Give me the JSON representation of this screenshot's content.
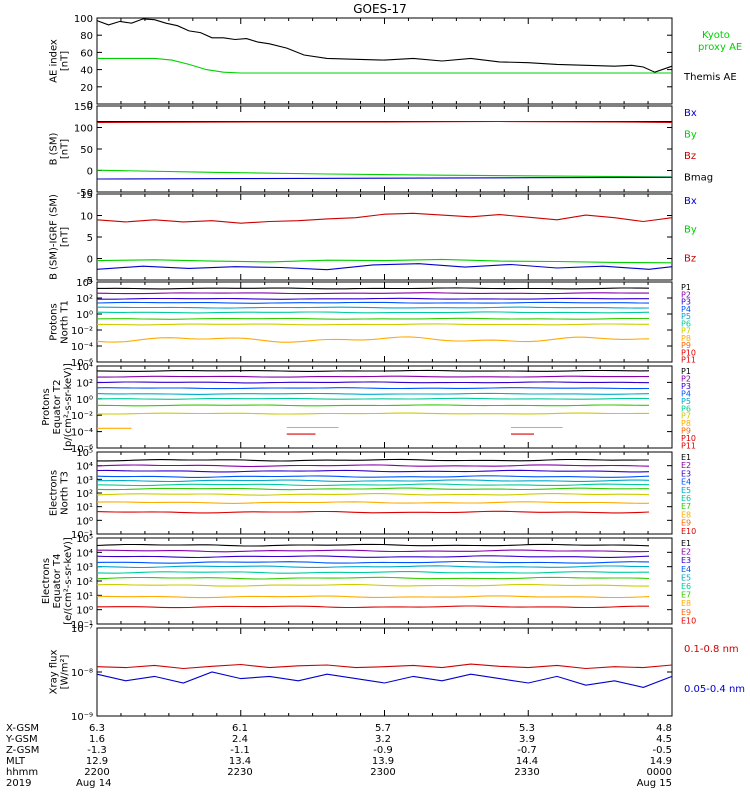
{
  "title": "GOES-17",
  "colors": {
    "black": "#000000",
    "green": "#00d000",
    "red": "#cc0000",
    "blue": "#0000cc",
    "p": [
      "#000000",
      "#8800aa",
      "#3300cc",
      "#0055ff",
      "#00aacc",
      "#00cc99",
      "#33cc00",
      "#cccc00",
      "#ffaa00",
      "#ff6600",
      "#dd0000"
    ],
    "e": [
      "#000000",
      "#8800aa",
      "#3300cc",
      "#0055ff",
      "#00aacc",
      "#00cc99",
      "#33cc00",
      "#cccc00",
      "#ffaa00",
      "#ff6600",
      "#dd0000"
    ]
  },
  "chart_data": [
    {
      "type": "line",
      "id": "ae",
      "ylabel": [
        "AE index",
        "[nT]"
      ],
      "ylim": [
        0,
        100
      ],
      "yticks": [
        "0",
        "20",
        "40",
        "60",
        "80",
        "100"
      ],
      "legend": [
        {
          "text": "Kyoto",
          "color": "#00d000"
        },
        {
          "text": "proxy AE",
          "color": "#00d000"
        },
        {
          "text": "Themis AE",
          "color": "#000000"
        }
      ],
      "series": [
        {
          "color": "#000000",
          "x": [
            0,
            0.02,
            0.04,
            0.06,
            0.08,
            0.1,
            0.12,
            0.14,
            0.16,
            0.18,
            0.2,
            0.22,
            0.24,
            0.26,
            0.28,
            0.3,
            0.33,
            0.36,
            0.4,
            0.45,
            0.5,
            0.55,
            0.6,
            0.65,
            0.7,
            0.75,
            0.8,
            0.85,
            0.9,
            0.93,
            0.95,
            0.97,
            1.0
          ],
          "y": [
            97,
            92,
            96,
            94,
            99,
            98,
            94,
            91,
            85,
            83,
            77,
            77,
            75,
            76,
            72,
            70,
            65,
            57,
            53,
            52,
            51,
            53,
            50,
            53,
            49,
            48,
            46,
            45,
            44,
            45,
            43,
            37,
            44
          ]
        },
        {
          "color": "#00d000",
          "x": [
            0,
            0.07,
            0.1,
            0.13,
            0.16,
            0.19,
            0.22,
            0.25,
            0.3,
            1.0
          ],
          "y": [
            53,
            53,
            53,
            51,
            46,
            40,
            37,
            36,
            36,
            36
          ]
        }
      ]
    },
    {
      "type": "line",
      "id": "bsm",
      "ylabel": [
        "B (SM)",
        "[nT]"
      ],
      "ylim": [
        -55,
        150
      ],
      "yticks": [
        "-50",
        "0",
        "50",
        "100",
        "150"
      ],
      "legend": [
        {
          "text": "Bx",
          "color": "#0000cc"
        },
        {
          "text": "By",
          "color": "#00d000"
        },
        {
          "text": "Bz",
          "color": "#cc0000"
        },
        {
          "text": "Bmag",
          "color": "#000000"
        }
      ],
      "series": [
        {
          "color": "#000000",
          "x": [
            0,
            1
          ],
          "y": [
            113,
            113
          ]
        },
        {
          "color": "#cc0000",
          "x": [
            0,
            0.3,
            0.5,
            0.7,
            0.9,
            1
          ],
          "y": [
            111,
            112,
            112,
            113,
            112,
            111
          ]
        },
        {
          "color": "#00d000",
          "x": [
            0,
            0.2,
            0.4,
            0.6,
            0.8,
            1
          ],
          "y": [
            -3,
            -8,
            -12,
            -15,
            -17,
            -19
          ]
        },
        {
          "color": "#0000cc",
          "x": [
            0,
            0.25,
            0.5,
            0.75,
            1
          ],
          "y": [
            -24,
            -23,
            -22,
            -21,
            -20
          ]
        }
      ]
    },
    {
      "type": "line",
      "id": "bdiff",
      "ylabel": [
        "B (SM)-IGRF (SM)",
        "[nT]"
      ],
      "ylim": [
        -5,
        15
      ],
      "yticks": [
        "-5",
        "0",
        "5",
        "10",
        "15"
      ],
      "legend": [
        {
          "text": "Bx",
          "color": "#0000cc"
        },
        {
          "text": "By",
          "color": "#00d000"
        },
        {
          "text": "Bz",
          "color": "#cc0000"
        }
      ],
      "series": [
        {
          "color": "#cc0000",
          "x": [
            0,
            0.05,
            0.1,
            0.15,
            0.2,
            0.25,
            0.3,
            0.35,
            0.4,
            0.45,
            0.5,
            0.55,
            0.6,
            0.65,
            0.7,
            0.75,
            0.8,
            0.85,
            0.9,
            0.95,
            1.0
          ],
          "y": [
            9,
            8.5,
            9,
            8.5,
            8.8,
            8.2,
            8.6,
            8.8,
            9.2,
            9.5,
            10.3,
            10.5,
            10.1,
            9.7,
            10.2,
            9.6,
            9.0,
            10.1,
            9.5,
            8.6,
            9.5
          ]
        },
        {
          "color": "#00d000",
          "x": [
            0,
            0.1,
            0.2,
            0.3,
            0.4,
            0.5,
            0.6,
            0.7,
            0.8,
            0.9,
            1.0
          ],
          "y": [
            -0.5,
            -0.3,
            -0.6,
            -0.8,
            -0.4,
            -0.5,
            -0.2,
            -0.6,
            -0.7,
            -0.9,
            -1.0
          ]
        },
        {
          "color": "#0000cc",
          "x": [
            0,
            0.08,
            0.16,
            0.24,
            0.32,
            0.4,
            0.48,
            0.56,
            0.64,
            0.72,
            0.8,
            0.88,
            0.96,
            1.0
          ],
          "y": [
            -2.5,
            -1.8,
            -2.3,
            -1.9,
            -2.1,
            -2.6,
            -1.5,
            -1.2,
            -2.0,
            -1.4,
            -2.2,
            -1.8,
            -2.5,
            -1.9
          ]
        }
      ]
    },
    {
      "type": "line",
      "id": "pnorth",
      "log": true,
      "ylabel": [
        "Protons",
        "North T1"
      ],
      "ylim": [
        -6,
        4
      ],
      "yticks": [
        "10⁻⁶",
        "10⁻⁴",
        "10⁻²",
        "10⁰",
        "10²",
        "10⁴"
      ],
      "legend": [
        {
          "text": "P1",
          "color": "#000000"
        },
        {
          "text": "P2",
          "color": "#8800aa"
        },
        {
          "text": "P3",
          "color": "#3300cc"
        },
        {
          "text": "P4",
          "color": "#0055ff"
        },
        {
          "text": "P5",
          "color": "#00aacc"
        },
        {
          "text": "P6",
          "color": "#00cc99"
        },
        {
          "text": "P7",
          "color": "#cccc00"
        },
        {
          "text": "P8",
          "color": "#ffaa00"
        },
        {
          "text": "P9",
          "color": "#ff6600"
        },
        {
          "text": "P10",
          "color": "#dd0000"
        },
        {
          "text": "P11",
          "color": "#dd0000"
        }
      ],
      "levels": [
        3.2,
        2.6,
        1.9,
        1.4,
        0.8,
        0.2,
        -0.6,
        -1.3,
        -3.2
      ],
      "colors": [
        "#000000",
        "#8800aa",
        "#3300cc",
        "#0055ff",
        "#00aacc",
        "#00cc99",
        "#33cc00",
        "#cccc00",
        "#ffaa00"
      ]
    },
    {
      "type": "line",
      "id": "pequator",
      "log": true,
      "ylabel": [
        "Protons",
        "Equator T2",
        "[p/(cm²-s-sr-keV)]"
      ],
      "ylim": [
        -6,
        4
      ],
      "yticks": [
        "10⁻⁶",
        "10⁻⁴",
        "10⁻²",
        "10⁰",
        "10²",
        "10⁴"
      ],
      "legend": [
        {
          "text": "P1",
          "color": "#000000"
        },
        {
          "text": "P2",
          "color": "#8800aa"
        },
        {
          "text": "P3",
          "color": "#3300cc"
        },
        {
          "text": "P4",
          "color": "#0055ff"
        },
        {
          "text": "P5",
          "color": "#00aacc"
        },
        {
          "text": "P6",
          "color": "#00cc99"
        },
        {
          "text": "P7",
          "color": "#cccc00"
        },
        {
          "text": "P8",
          "color": "#ffaa00"
        },
        {
          "text": "P9",
          "color": "#ff6600"
        },
        {
          "text": "P10",
          "color": "#dd0000"
        },
        {
          "text": "P11",
          "color": "#dd0000"
        }
      ],
      "levels": [
        3.4,
        2.7,
        2.0,
        1.3,
        0.6,
        0.0,
        -0.8,
        -1.8
      ],
      "colors": [
        "#000000",
        "#8800aa",
        "#3300cc",
        "#0055ff",
        "#00aacc",
        "#00cc99",
        "#33cc00",
        "#cccc00"
      ]
    },
    {
      "type": "line",
      "id": "enorth",
      "log": true,
      "ylabel": [
        "Electrons",
        "North T3"
      ],
      "ylim": [
        -1,
        5
      ],
      "yticks": [
        "10⁻¹",
        "10⁰",
        "10¹",
        "10²",
        "10³",
        "10⁴",
        "10⁵"
      ],
      "legend": [
        {
          "text": "E1",
          "color": "#000000"
        },
        {
          "text": "E2",
          "color": "#8800aa"
        },
        {
          "text": "E3",
          "color": "#3300cc"
        },
        {
          "text": "E4",
          "color": "#0055ff"
        },
        {
          "text": "E5",
          "color": "#00aacc"
        },
        {
          "text": "E6",
          "color": "#00cc99"
        },
        {
          "text": "E7",
          "color": "#33cc00"
        },
        {
          "text": "E8",
          "color": "#ffaa00"
        },
        {
          "text": "E9",
          "color": "#ff6600"
        },
        {
          "text": "E10",
          "color": "#dd0000"
        }
      ],
      "levels": [
        4.4,
        4.0,
        3.6,
        3.2,
        2.9,
        2.6,
        2.3,
        1.9,
        1.3,
        0.6
      ],
      "colors": [
        "#000000",
        "#8800aa",
        "#3300cc",
        "#0055ff",
        "#00aacc",
        "#00cc99",
        "#33cc00",
        "#cccc00",
        "#ffaa00",
        "#dd0000"
      ]
    },
    {
      "type": "line",
      "id": "eequator",
      "log": true,
      "ylabel": [
        "Electrons",
        "Equator T4",
        "[e/(cm²-s-sr-keV)]"
      ],
      "ylim": [
        -1,
        5
      ],
      "yticks": [
        "10⁻¹",
        "10⁰",
        "10¹",
        "10²",
        "10³",
        "10⁴",
        "10⁵"
      ],
      "legend": [
        {
          "text": "E1",
          "color": "#000000"
        },
        {
          "text": "E2",
          "color": "#8800aa"
        },
        {
          "text": "E3",
          "color": "#3300cc"
        },
        {
          "text": "E4",
          "color": "#0055ff"
        },
        {
          "text": "E5",
          "color": "#00aacc"
        },
        {
          "text": "E6",
          "color": "#00cc99"
        },
        {
          "text": "E7",
          "color": "#33cc00"
        },
        {
          "text": "E8",
          "color": "#ffaa00"
        },
        {
          "text": "E9",
          "color": "#ff6600"
        },
        {
          "text": "E10",
          "color": "#dd0000"
        }
      ],
      "levels": [
        4.5,
        4.1,
        3.7,
        3.3,
        3.0,
        2.6,
        2.2,
        1.7,
        0.9,
        0.2
      ],
      "colors": [
        "#000000",
        "#8800aa",
        "#3300cc",
        "#0055ff",
        "#00aacc",
        "#00cc99",
        "#33cc00",
        "#cccc00",
        "#ffaa00",
        "#dd0000"
      ]
    },
    {
      "type": "line",
      "id": "xray",
      "log": true,
      "ylabel": [
        "Xray flux",
        "[W/m²]"
      ],
      "ylim": [
        -9,
        -7
      ],
      "yticks": [
        "10⁻⁹",
        "10⁻⁸",
        "10⁻⁷"
      ],
      "legend": [
        {
          "text": "0.1-0.8 nm",
          "color": "#cc0000"
        },
        {
          "text": "0.05-0.4 nm",
          "color": "#0000cc"
        }
      ],
      "series": [
        {
          "color": "#cc0000",
          "x": [
            0,
            0.05,
            0.1,
            0.15,
            0.2,
            0.25,
            0.3,
            0.35,
            0.4,
            0.45,
            0.5,
            0.55,
            0.6,
            0.65,
            0.7,
            0.75,
            0.8,
            0.85,
            0.9,
            0.95,
            1.0
          ],
          "y": [
            -7.88,
            -7.9,
            -7.85,
            -7.92,
            -7.87,
            -7.83,
            -7.9,
            -7.86,
            -7.84,
            -7.9,
            -7.88,
            -7.85,
            -7.9,
            -7.82,
            -7.87,
            -7.9,
            -7.85,
            -7.92,
            -7.88,
            -7.9,
            -7.84
          ]
        },
        {
          "color": "#0000cc",
          "x": [
            0,
            0.05,
            0.1,
            0.15,
            0.2,
            0.25,
            0.3,
            0.35,
            0.4,
            0.45,
            0.5,
            0.55,
            0.6,
            0.65,
            0.7,
            0.75,
            0.8,
            0.85,
            0.9,
            0.95,
            1.0
          ],
          "y": [
            -8.05,
            -8.2,
            -8.1,
            -8.25,
            -8.0,
            -8.15,
            -8.1,
            -8.2,
            -8.05,
            -8.15,
            -8.25,
            -8.1,
            -8.2,
            -8.05,
            -8.15,
            -8.25,
            -8.1,
            -8.3,
            -8.2,
            -8.35,
            -8.1
          ]
        }
      ]
    }
  ],
  "footer": {
    "rows": [
      {
        "label": "X-GSM",
        "values": [
          "6.3",
          "6.1",
          "5.7",
          "5.3",
          "4.8"
        ]
      },
      {
        "label": "Y-GSM",
        "values": [
          "1.6",
          "2.4",
          "3.2",
          "3.9",
          "4.5"
        ]
      },
      {
        "label": "Z-GSM",
        "values": [
          "-1.3",
          "-1.1",
          "-0.9",
          "-0.7",
          "-0.5"
        ]
      },
      {
        "label": "MLT",
        "values": [
          "12.9",
          "13.4",
          "13.9",
          "14.4",
          "14.9"
        ]
      },
      {
        "label": "hhmm",
        "values": [
          "2200",
          "2230",
          "2300",
          "2330",
          "0000"
        ]
      },
      {
        "label": "2019",
        "values": [
          "Aug 14",
          "",
          "",
          "",
          "Aug 15"
        ]
      }
    ]
  }
}
